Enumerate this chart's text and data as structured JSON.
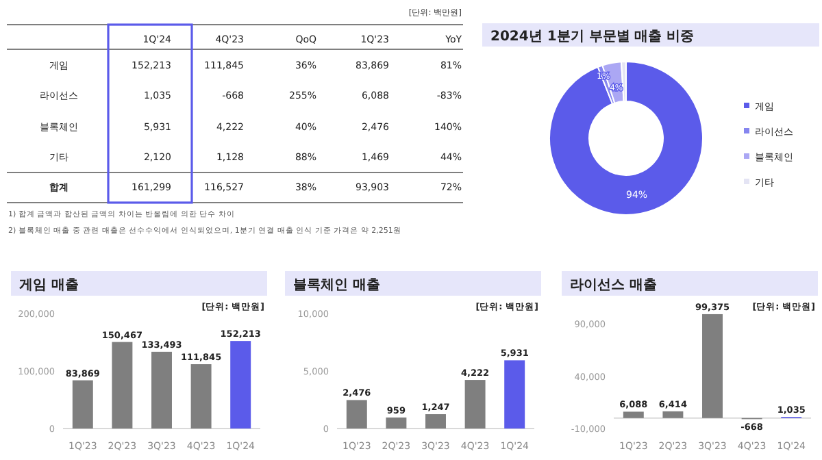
{
  "chart_data": [
    {
      "type": "other",
      "subtitle": "[단위: 백만원]",
      "categories": [
        null,
        "1Q'24",
        "4Q'23",
        "QoQ",
        "1Q'23",
        "YoY"
      ],
      "y_categories": [
        "게임",
        "라이선스",
        "블록체인",
        "기타",
        "합계"
      ],
      "cell_labels": [
        [
          "152,213",
          "111,845",
          "36%",
          "83,869",
          "81%"
        ],
        [
          "1,035",
          "-668",
          "255%",
          "6,088",
          "-83%"
        ],
        [
          "5,931",
          "4,222",
          "40%",
          "2,476",
          "140%"
        ],
        [
          "2,120",
          "1,128",
          "88%",
          "1,469",
          "44%"
        ],
        [
          "161,299",
          "116,527",
          "38%",
          "93,903",
          "72%"
        ]
      ],
      "annotations": [
        "1) 합계 금액과 합산된 금액의 차이는 반올림에 의한 단수 차이",
        "2) 블록체인 매출 중 관련 매출은 선수수익에서 인식되었으며, 1분기 연결 매출 인식 기준 가격은 약 2,251원"
      ]
    },
    {
      "type": "donut",
      "title": "2024년 1분기 부문별 매출 비중",
      "categories": [
        "게임",
        "라이선스",
        "블록체인",
        "기타"
      ],
      "values": [
        94,
        1,
        4,
        1
      ],
      "colors": [
        "#5b5bea",
        "#8585ef",
        "#aba7f4",
        "#e4e4f4"
      ],
      "value_labels": [
        "94%",
        "1%",
        "4%",
        null
      ],
      "legend": "right"
    },
    {
      "type": "bar",
      "title": "게임 매출",
      "subtitle": "[단위: 백만원]",
      "categories": [
        "1Q'23",
        "2Q'23",
        "3Q'23",
        "4Q'23",
        "1Q'24"
      ],
      "values": [
        83869,
        150467,
        133493,
        111845,
        152213
      ],
      "value_labels": [
        "83,869",
        "150,467",
        "133,493",
        "111,845",
        "152,213"
      ],
      "colors": [
        "#7f7f7f",
        "#7f7f7f",
        "#7f7f7f",
        "#7f7f7f",
        "#5b5bea"
      ],
      "ylim": [
        0,
        200000
      ],
      "yticks": [
        {
          "value": 0,
          "label": "0"
        },
        {
          "value": 100000,
          "label": "100,000"
        },
        {
          "value": 200000,
          "label": "200,000"
        }
      ]
    },
    {
      "type": "bar",
      "title": "블록체인 매출",
      "subtitle": "[단위: 백만원]",
      "categories": [
        "1Q'23",
        "2Q'23",
        "3Q'23",
        "4Q'23",
        "1Q'24"
      ],
      "values": [
        2476,
        959,
        1247,
        4222,
        5931
      ],
      "value_labels": [
        "2,476",
        "959",
        "1,247",
        "4,222",
        "5,931"
      ],
      "colors": [
        "#7f7f7f",
        "#7f7f7f",
        "#7f7f7f",
        "#7f7f7f",
        "#5b5bea"
      ],
      "ylim": [
        0,
        10000
      ],
      "yticks": [
        {
          "value": 0,
          "label": "0"
        },
        {
          "value": 5000,
          "label": "5,000"
        },
        {
          "value": 10000,
          "label": "10,000"
        }
      ]
    },
    {
      "type": "bar",
      "title": "라이선스 매출",
      "subtitle": "[단위: 백만원]",
      "categories": [
        "1Q'23",
        "2Q'23",
        "3Q'23",
        "4Q'23",
        "1Q'24"
      ],
      "values": [
        6088,
        6414,
        99375,
        -668,
        1035
      ],
      "value_labels": [
        "6,088",
        "6,414",
        "99,375",
        "-668",
        "1,035"
      ],
      "colors": [
        "#7f7f7f",
        "#7f7f7f",
        "#7f7f7f",
        "#7f7f7f",
        "#5b5bea"
      ],
      "ylim": [
        -10000,
        100000
      ],
      "yticks": [
        {
          "value": -10000,
          "label": "-10,000"
        },
        {
          "value": 40000,
          "label": "40,000"
        },
        {
          "value": 90000,
          "label": "90,000"
        }
      ]
    }
  ]
}
